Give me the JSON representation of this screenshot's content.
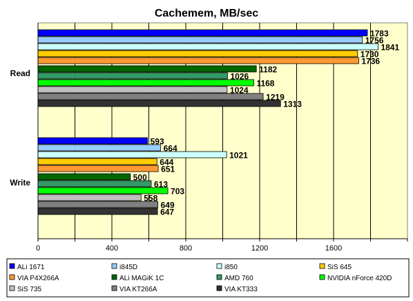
{
  "chart_data": {
    "type": "bar",
    "orientation": "horizontal",
    "title": "Cachemem, MB/sec",
    "categories": [
      "Read",
      "Write"
    ],
    "series": [
      {
        "name": "ALi 1671",
        "color": "#0000ff",
        "values": [
          1783,
          593
        ]
      },
      {
        "name": "i845D",
        "color": "#99ccff",
        "values": [
          1756,
          664
        ]
      },
      {
        "name": "i850",
        "color": "#ccffff",
        "values": [
          1841,
          1021
        ]
      },
      {
        "name": "SiS 645",
        "color": "#ffcc00",
        "values": [
          1730,
          644
        ]
      },
      {
        "name": "VIA P4X266A",
        "color": "#ff9933",
        "values": [
          1736,
          651
        ]
      },
      {
        "name": "ALi MAGiK 1C",
        "color": "#006600",
        "values": [
          1182,
          500
        ]
      },
      {
        "name": "AMD 760",
        "color": "#339966",
        "values": [
          1026,
          613
        ]
      },
      {
        "name": "NVIDIA nForce 420D",
        "color": "#00ff00",
        "values": [
          1168,
          703
        ]
      },
      {
        "name": "SiS 735",
        "color": "#c0c0c0",
        "values": [
          1024,
          558
        ]
      },
      {
        "name": "VIA KT266A",
        "color": "#808080",
        "values": [
          1219,
          649
        ]
      },
      {
        "name": "VIA KT333",
        "color": "#333333",
        "values": [
          1313,
          647
        ]
      }
    ],
    "xlim": [
      0,
      2000
    ],
    "xticks": [
      "0",
      "400",
      "800",
      "1200",
      "1600"
    ],
    "grid": true,
    "legend_position": "bottom",
    "plot_background": "#ffffcc"
  }
}
